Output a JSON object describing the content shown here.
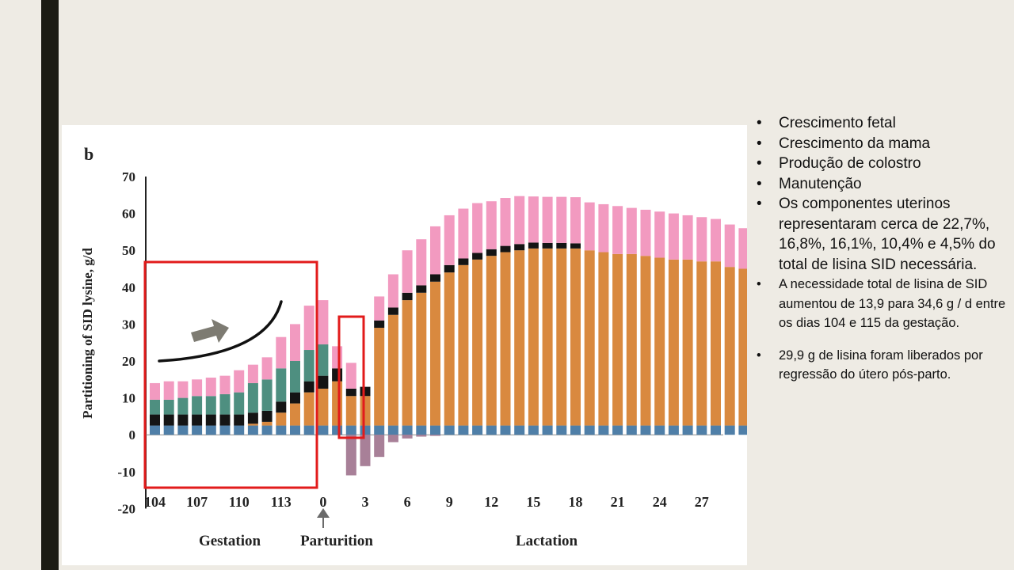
{
  "slide": {
    "bullets_primary": [
      "Crescimento fetal",
      "Crescimento da mama",
      "Produção de colostro",
      "Manutenção",
      "Os componentes uterinos representaram cerca de 22,7%, 16,8%, 16,1%, 10,4% e 4,5% do total de lisina SID necessária."
    ],
    "bullets_secondary": [
      "A necessidade total de lisina de SID aumentou de 13,9 para 34,6 g / d entre os dias 104 e 115 da gestação.",
      "29,9 g de lisina foram liberados por regressão do útero pós-parto."
    ]
  },
  "chart_data": {
    "type": "bar",
    "panel_letter": "b",
    "ylabel": "Partitioning of SID lysine,  g/d",
    "ylim": [
      -20,
      70
    ],
    "yticks": [
      "70",
      "60",
      "50",
      "40",
      "30",
      "20",
      "10",
      "0",
      "-10",
      "-20"
    ],
    "xtick_labels": [
      "104",
      "107",
      "110",
      "113",
      "0",
      "3",
      "6",
      "9",
      "12",
      "15",
      "18",
      "21",
      "24",
      "27"
    ],
    "group_labels": [
      "Gestation",
      "Parturition",
      "Lactation"
    ],
    "colors": {
      "blue": "#4f7fa8",
      "black": "#141414",
      "green": "#4e8f80",
      "orange": "#d9893f",
      "pink": "#f29ac0",
      "purple": "#a88098",
      "highlight": "#e21b1b",
      "arrow": "#7d7b72",
      "curve": "#111111"
    },
    "series": [
      {
        "key": "blue",
        "values": [
          2.5,
          2.5,
          2.5,
          2.5,
          2.5,
          2.5,
          2.5,
          2.5,
          2.5,
          2.5,
          2.5,
          2.5,
          2.5,
          2.5,
          2.5,
          2.5,
          2.5,
          2.5,
          2.5,
          2.5,
          2.5,
          2.5,
          2.5,
          2.5,
          2.5,
          2.5,
          2.5,
          2.5,
          2.5,
          2.5,
          2.5,
          2.5,
          2.5,
          2.5,
          2.5,
          2.5,
          2.5,
          2.5,
          2.5,
          2.5,
          2.5,
          2.5,
          2.5,
          2.5
        ]
      },
      {
        "key": "orange",
        "values": [
          0,
          0,
          0,
          0,
          0,
          0,
          0,
          0.5,
          1,
          3.5,
          6,
          9,
          10,
          12,
          8,
          8,
          26.5,
          30,
          34,
          36,
          39,
          41.5,
          43.5,
          45,
          46,
          47,
          47.5,
          48,
          48,
          48,
          48,
          47.5,
          47,
          46.5,
          46.5,
          46,
          45.5,
          45,
          45,
          44.5,
          44.5,
          43,
          42.5,
          42
        ]
      },
      {
        "key": "black",
        "values": [
          3,
          3,
          3,
          3,
          3,
          3,
          3,
          3,
          3,
          3,
          3,
          3,
          3.5,
          3.5,
          2,
          2.5,
          2,
          2,
          2,
          2,
          2,
          2,
          1.8,
          1.8,
          1.8,
          1.7,
          1.7,
          1.6,
          1.5,
          1.5,
          1.4,
          0,
          0,
          0,
          0,
          0,
          0,
          0,
          0,
          0,
          0,
          0,
          0,
          0
        ]
      },
      {
        "key": "green",
        "values": [
          4,
          4,
          4.5,
          5,
          5,
          5.5,
          6,
          8,
          8.5,
          9,
          8.5,
          8.5,
          8.5,
          0,
          0,
          0,
          0,
          0,
          0,
          0,
          0,
          0,
          0,
          0,
          0,
          0,
          0,
          0,
          0,
          0,
          0,
          0,
          0,
          0,
          0,
          0,
          0,
          0,
          0,
          0,
          0,
          0,
          0,
          0
        ]
      },
      {
        "key": "pink",
        "values": [
          4.5,
          5,
          4.5,
          4.5,
          5,
          5,
          6,
          5,
          6,
          8.5,
          10,
          12,
          12,
          6,
          7,
          0,
          6.5,
          9,
          11.5,
          12.5,
          13,
          13.5,
          13.5,
          13.5,
          13,
          13,
          13,
          12.5,
          12.5,
          12.5,
          12.5,
          13,
          13,
          13,
          12.5,
          12.5,
          12.5,
          12.5,
          12,
          12,
          11.5,
          11.5,
          11,
          10.5
        ]
      },
      {
        "key": "purple",
        "values": [
          0,
          0,
          0,
          0,
          0,
          0,
          0,
          0,
          0,
          0,
          0,
          0,
          0,
          0,
          -11,
          -8.5,
          -6,
          -2,
          -1,
          -0.5,
          -0.3,
          0,
          0,
          0,
          0,
          0,
          0,
          0,
          0,
          0,
          0,
          0,
          0,
          0,
          0,
          0,
          0,
          0,
          0,
          0,
          0,
          0,
          0,
          0
        ]
      }
    ]
  }
}
